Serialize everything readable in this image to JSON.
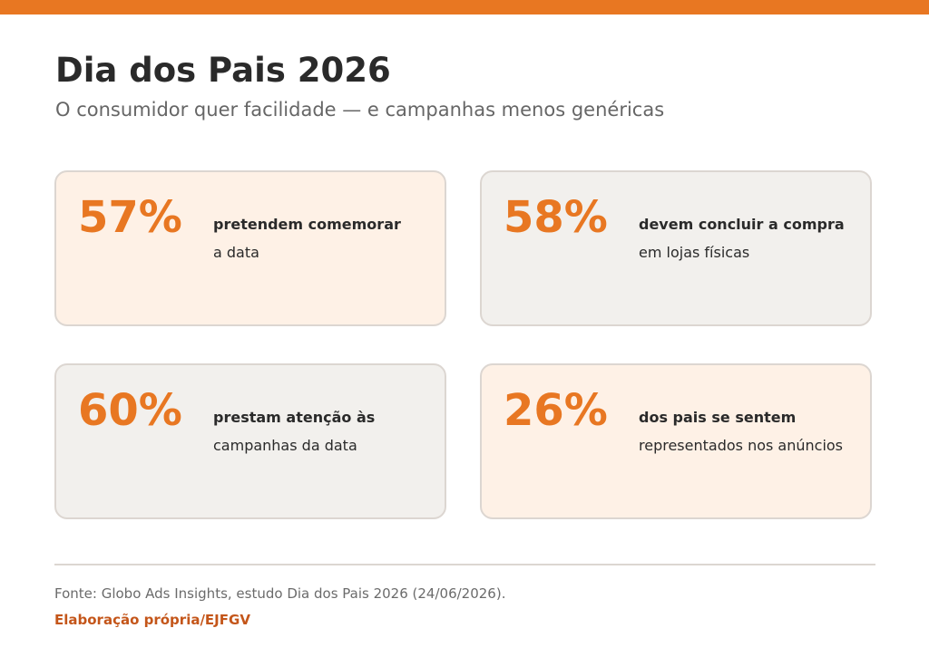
{
  "colors": {
    "accent": "#E87722",
    "card_warm": "#FEF1E6",
    "card_neutral": "#F2F0ED",
    "credit": "#C4561A"
  },
  "header": {
    "title": "Dia dos Pais 2026",
    "subtitle": "O consumidor quer facilidade — e campanhas menos genéricas"
  },
  "cards": [
    {
      "value": "57%",
      "bold": "pretendem comemorar",
      "plain": "a data",
      "tone": "warm"
    },
    {
      "value": "58%",
      "bold": "devem concluir a compra",
      "plain": "em lojas físicas",
      "tone": "neutral"
    },
    {
      "value": "60%",
      "bold": "prestam atenção às",
      "plain": "campanhas da data",
      "tone": "neutral"
    },
    {
      "value": "26%",
      "bold": "dos pais se sentem",
      "plain": "representados nos anúncios",
      "tone": "warm"
    }
  ],
  "footer": {
    "source": "Fonte: Globo Ads Insights, estudo Dia dos Pais 2026 (24/06/2026).",
    "credit": "Elaboração própria/EJFGV"
  }
}
